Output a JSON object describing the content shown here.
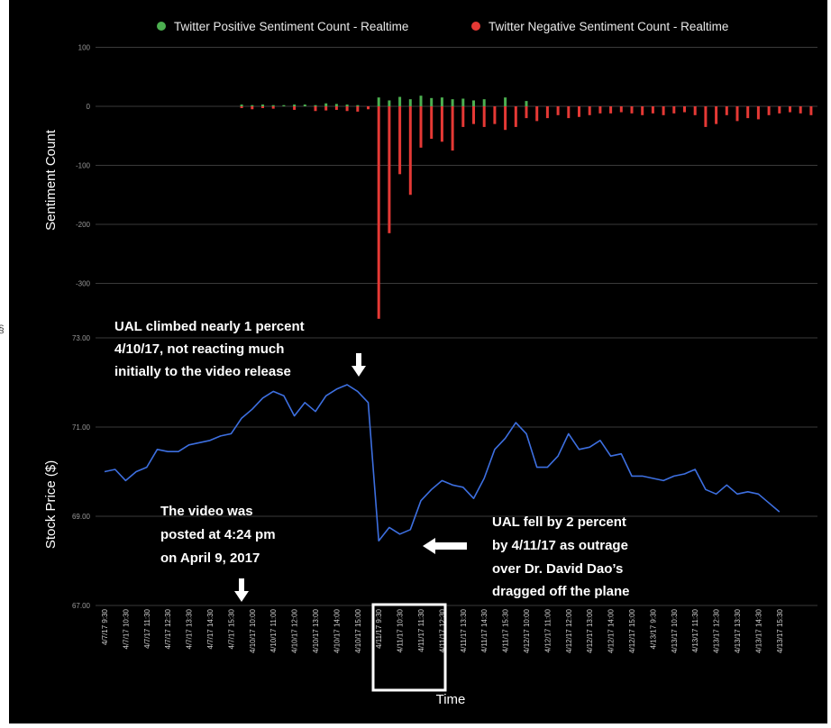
{
  "chart_data": [
    {
      "type": "bar",
      "legend": [
        "Twitter Positive Sentiment Count - Realtime",
        "Twitter Negative Sentiment Count - Realtime"
      ],
      "ylabel": "Sentiment Count",
      "ylim": [
        -360,
        100
      ],
      "yticks": [
        "100",
        "0",
        "-100",
        "-200",
        "-300"
      ],
      "colors": {
        "positive": "#4caf50",
        "negative": "#e53935"
      },
      "series": [
        {
          "name": "Twitter Positive Sentiment Count - Realtime",
          "x": [
            6.5,
            7.0,
            7.5,
            8.0,
            8.5,
            9.0,
            9.5,
            10.0,
            10.5,
            11.0,
            11.5,
            12.0,
            13.0,
            13.5,
            14.0,
            14.5,
            15.0,
            15.5,
            16.0,
            16.5,
            17.0,
            17.5,
            18.0,
            19.0,
            20.0
          ],
          "values": [
            3,
            2,
            3,
            2,
            2,
            3,
            3,
            2,
            5,
            4,
            3,
            2,
            15,
            10,
            16,
            12,
            18,
            14,
            15,
            12,
            13,
            10,
            12,
            15,
            9
          ]
        },
        {
          "name": "Twitter Negative Sentiment Count - Realtime",
          "x": [
            6.5,
            7.0,
            7.5,
            8.0,
            9.0,
            10.0,
            10.5,
            11.0,
            11.5,
            12.0,
            12.5,
            13.0,
            13.5,
            14.0,
            14.5,
            15.0,
            15.5,
            16.0,
            16.5,
            17.0,
            17.5,
            18.0,
            18.5,
            19.0,
            19.5,
            20.0,
            20.5,
            21.0,
            21.5,
            22.0,
            22.5,
            23.0,
            23.5,
            24.0,
            24.5,
            25.0,
            25.5,
            26.0,
            26.5,
            27.0,
            27.5,
            28.0,
            28.5,
            29.0,
            29.5,
            30.0,
            30.5,
            31.0,
            31.5,
            32.0,
            32.5,
            33.0,
            33.5
          ],
          "values": [
            -3,
            -5,
            -3,
            -4,
            -6,
            -8,
            -7,
            -6,
            -8,
            -9,
            -5,
            -360,
            -215,
            -115,
            -150,
            -70,
            -55,
            -60,
            -75,
            -35,
            -30,
            -35,
            -30,
            -40,
            -35,
            -20,
            -25,
            -20,
            -15,
            -20,
            -18,
            -15,
            -12,
            -12,
            -10,
            -12,
            -15,
            -12,
            -15,
            -12,
            -10,
            -15,
            -35,
            -30,
            -15,
            -25,
            -20,
            -22,
            -15,
            -12,
            -10,
            -12,
            -15
          ]
        }
      ]
    },
    {
      "type": "line",
      "xlabel": "Time",
      "ylabel": "Stock Price ($)",
      "ylim": [
        67,
        73
      ],
      "yticks": [
        "73.00",
        "71.00",
        "69.00",
        "67.00"
      ],
      "color": "#3d6fe0",
      "categories": [
        "4/7/17 9:30",
        "4/7/17 10:30",
        "4/7/17 11:30",
        "4/7/17 12:30",
        "4/7/17 13:30",
        "4/7/17 14:30",
        "4/7/17 15:30",
        "4/10/17 10:00",
        "4/10/17 11:00",
        "4/10/17 12:00",
        "4/10/17 13:00",
        "4/10/17 14:00",
        "4/10/17 15:00",
        "4/11/17 9:30",
        "4/11/17 10:30",
        "4/11/17 11:30",
        "4/11/17 12:30",
        "4/11/17 13:30",
        "4/11/17 14:30",
        "4/11/17 15:30",
        "4/12/17 10:00",
        "4/12/17 11:00",
        "4/12/17 12:00",
        "4/12/17 13:00",
        "4/12/17 14:00",
        "4/12/17 15:00",
        "4/13/17 9:30",
        "4/13/17 10:30",
        "4/13/17 11:30",
        "4/13/17 12:30",
        "4/13/17 13:30",
        "4/13/17 14:30",
        "4/13/17 15:30"
      ],
      "x": [
        0,
        0.5,
        1,
        1.5,
        2,
        2.5,
        3,
        3.5,
        4,
        4.5,
        5,
        5.5,
        6,
        6.5,
        7,
        7.5,
        8,
        8.5,
        9,
        9.5,
        10,
        10.5,
        11,
        11.5,
        12,
        12.5,
        13,
        13.5,
        14,
        14.5,
        15,
        15.5,
        16,
        16.5,
        17,
        17.5,
        18,
        18.5,
        19,
        19.5,
        20,
        20.5,
        21,
        21.5,
        22,
        22.5,
        23,
        23.5,
        24,
        24.5,
        25,
        25.5,
        26,
        26.5,
        27,
        27.5,
        28,
        28.5,
        29,
        29.5,
        30,
        30.5,
        31,
        31.5,
        32
      ],
      "values": [
        70.0,
        70.05,
        69.8,
        70.0,
        70.1,
        70.5,
        70.45,
        70.45,
        70.6,
        70.65,
        70.7,
        70.8,
        70.85,
        71.2,
        71.4,
        71.65,
        71.8,
        71.7,
        71.25,
        71.55,
        71.35,
        71.7,
        71.85,
        71.95,
        71.8,
        71.55,
        68.45,
        68.75,
        68.6,
        68.7,
        69.35,
        69.6,
        69.8,
        69.7,
        69.65,
        69.4,
        69.85,
        70.5,
        70.75,
        71.1,
        70.85,
        70.1,
        70.1,
        70.35,
        70.85,
        70.5,
        70.55,
        70.7,
        70.35,
        70.4,
        69.9,
        69.9,
        69.85,
        69.8,
        69.9,
        69.95,
        70.05,
        69.6,
        69.5,
        69.7,
        69.5,
        69.55,
        69.5,
        69.3,
        69.1
      ]
    }
  ],
  "annotations": {
    "climb": [
      "UAL climbed nearly 1 percent",
      "4/10/17, not reacting much",
      "initially to the video release"
    ],
    "video": [
      "The video was",
      "posted at 4:24 pm",
      "on April 9, 2017"
    ],
    "fall": [
      "UAL fell by 2 percent",
      "by 4/11/17 as outrage",
      "over Dr. David Dao’s",
      "dragged off the plane"
    ]
  },
  "stray_mark": "§"
}
